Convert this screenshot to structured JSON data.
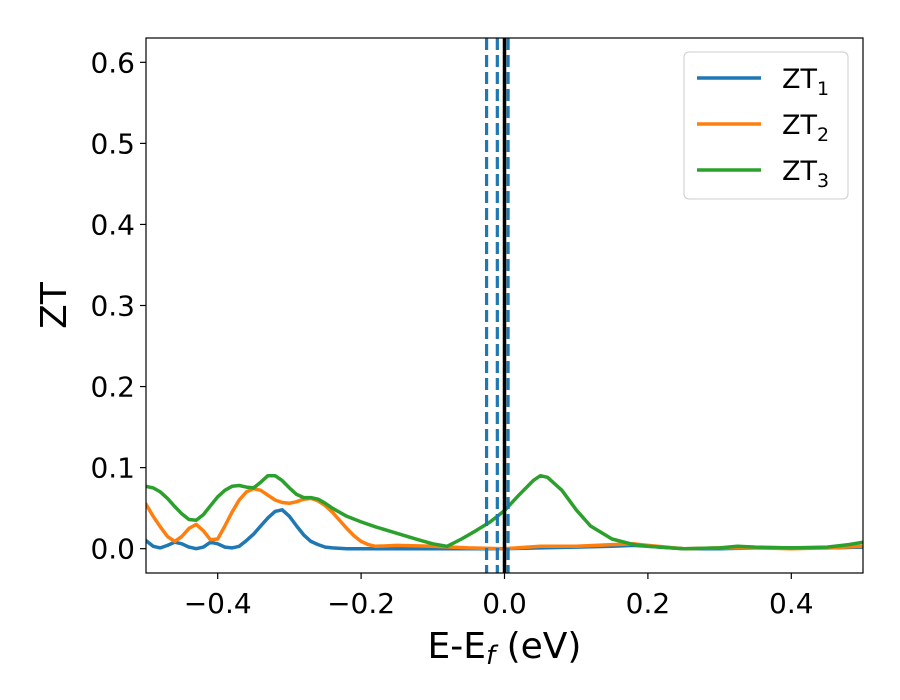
{
  "chart_data": {
    "type": "line",
    "title": "",
    "xlabel": {
      "main": "E-E",
      "sub": "f",
      "suffix": " (eV)"
    },
    "ylabel": "ZT",
    "xlim": [
      -0.5,
      0.5
    ],
    "ylim": [
      -0.03,
      0.63
    ],
    "x_ticks": [
      -0.4,
      -0.2,
      0.0,
      0.2,
      0.4
    ],
    "x_tick_labels": [
      "−0.4",
      "−0.2",
      "0.0",
      "0.2",
      "0.4"
    ],
    "y_ticks": [
      0.0,
      0.1,
      0.2,
      0.3,
      0.4,
      0.5,
      0.6
    ],
    "y_tick_labels": [
      "0.0",
      "0.1",
      "0.2",
      "0.3",
      "0.4",
      "0.5",
      "0.6"
    ],
    "grid": false,
    "legend_position": "top-right",
    "series": [
      {
        "name": "ZT",
        "sub": "1",
        "color": "#1f77b4",
        "x": [
          -0.5,
          -0.49,
          -0.48,
          -0.47,
          -0.46,
          -0.45,
          -0.44,
          -0.43,
          -0.42,
          -0.41,
          -0.4,
          -0.39,
          -0.38,
          -0.37,
          -0.36,
          -0.35,
          -0.34,
          -0.33,
          -0.32,
          -0.31,
          -0.3,
          -0.29,
          -0.28,
          -0.27,
          -0.26,
          -0.25,
          -0.24,
          -0.22,
          -0.2,
          -0.15,
          -0.1,
          -0.05,
          0.0,
          0.05,
          0.1,
          0.15,
          0.18,
          0.2,
          0.25,
          0.3,
          0.35,
          0.4,
          0.45,
          0.5
        ],
        "y": [
          0.01,
          0.003,
          0.001,
          0.004,
          0.008,
          0.006,
          0.002,
          0.0,
          0.002,
          0.008,
          0.006,
          0.002,
          0.001,
          0.003,
          0.01,
          0.018,
          0.028,
          0.038,
          0.046,
          0.048,
          0.04,
          0.028,
          0.017,
          0.009,
          0.005,
          0.002,
          0.001,
          0.0,
          0.0,
          0.0,
          0.0,
          0.0,
          0.0,
          0.001,
          0.002,
          0.003,
          0.004,
          0.003,
          0.0,
          0.0,
          0.001,
          0.001,
          0.001,
          0.002
        ]
      },
      {
        "name": "ZT",
        "sub": "2",
        "color": "#ff7f0e",
        "x": [
          -0.5,
          -0.49,
          -0.48,
          -0.47,
          -0.46,
          -0.45,
          -0.44,
          -0.43,
          -0.42,
          -0.41,
          -0.4,
          -0.39,
          -0.38,
          -0.37,
          -0.36,
          -0.35,
          -0.34,
          -0.33,
          -0.32,
          -0.31,
          -0.3,
          -0.29,
          -0.28,
          -0.27,
          -0.26,
          -0.25,
          -0.24,
          -0.23,
          -0.22,
          -0.21,
          -0.2,
          -0.19,
          -0.18,
          -0.15,
          -0.1,
          -0.05,
          0.0,
          0.05,
          0.1,
          0.15,
          0.18,
          0.2,
          0.25,
          0.3,
          0.35,
          0.4,
          0.45,
          0.5
        ],
        "y": [
          0.055,
          0.04,
          0.027,
          0.015,
          0.009,
          0.015,
          0.025,
          0.03,
          0.022,
          0.011,
          0.012,
          0.028,
          0.045,
          0.06,
          0.07,
          0.074,
          0.072,
          0.066,
          0.06,
          0.057,
          0.056,
          0.058,
          0.061,
          0.062,
          0.059,
          0.053,
          0.045,
          0.035,
          0.025,
          0.016,
          0.009,
          0.005,
          0.003,
          0.004,
          0.003,
          0.001,
          0.0,
          0.003,
          0.003,
          0.005,
          0.006,
          0.004,
          0.0,
          0.001,
          0.001,
          0.0,
          0.001,
          0.003
        ]
      },
      {
        "name": "ZT",
        "sub": "3",
        "color": "#2ca02c",
        "x": [
          -0.5,
          -0.49,
          -0.48,
          -0.47,
          -0.46,
          -0.45,
          -0.44,
          -0.43,
          -0.42,
          -0.41,
          -0.4,
          -0.39,
          -0.38,
          -0.37,
          -0.36,
          -0.35,
          -0.34,
          -0.33,
          -0.32,
          -0.31,
          -0.3,
          -0.29,
          -0.28,
          -0.27,
          -0.26,
          -0.25,
          -0.24,
          -0.22,
          -0.2,
          -0.18,
          -0.15,
          -0.12,
          -0.1,
          -0.08,
          -0.06,
          -0.04,
          -0.02,
          0.0,
          0.02,
          0.04,
          0.05,
          0.06,
          0.08,
          0.1,
          0.12,
          0.15,
          0.18,
          0.2,
          0.25,
          0.3,
          0.325,
          0.35,
          0.4,
          0.45,
          0.48,
          0.5
        ],
        "y": [
          0.077,
          0.075,
          0.07,
          0.062,
          0.052,
          0.043,
          0.036,
          0.035,
          0.042,
          0.053,
          0.064,
          0.072,
          0.077,
          0.078,
          0.076,
          0.075,
          0.082,
          0.09,
          0.09,
          0.084,
          0.075,
          0.067,
          0.063,
          0.063,
          0.061,
          0.056,
          0.05,
          0.04,
          0.033,
          0.027,
          0.019,
          0.011,
          0.006,
          0.003,
          0.012,
          0.022,
          0.033,
          0.047,
          0.066,
          0.084,
          0.09,
          0.088,
          0.072,
          0.048,
          0.028,
          0.012,
          0.005,
          0.003,
          0.0,
          0.001,
          0.003,
          0.002,
          0.001,
          0.002,
          0.005,
          0.008
        ]
      }
    ],
    "vlines": [
      {
        "x": -0.025,
        "style": "dashed",
        "color": "#1f77b4"
      },
      {
        "x": -0.01,
        "style": "dashed",
        "color": "#1f77b4"
      },
      {
        "x": 0.005,
        "style": "dashed",
        "color": "#1f77b4"
      },
      {
        "x": 0.0,
        "style": "solid",
        "color": "#000000"
      }
    ]
  }
}
